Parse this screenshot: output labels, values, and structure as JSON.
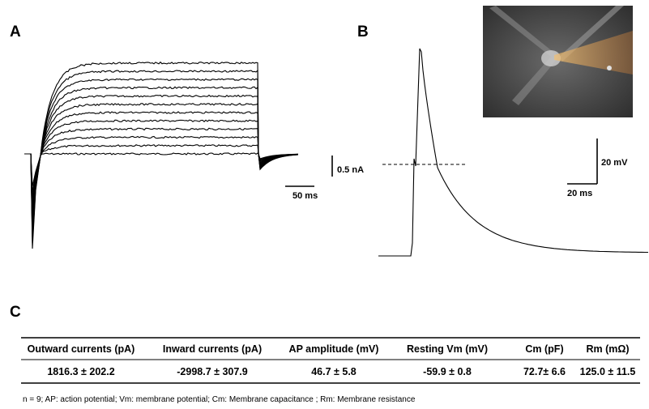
{
  "panels": {
    "a": {
      "label": "A",
      "scale_current": "0.5 nA",
      "scale_time": "50 ms"
    },
    "b": {
      "label": "B",
      "scale_voltage": "20 mV",
      "scale_time": "20 ms"
    },
    "c": {
      "label": "C"
    }
  },
  "table": {
    "header": [
      "Outward currents (pA)",
      "Inward currents (pA)",
      "AP amplitude (mV)",
      "Resting Vm (mV)",
      "Cm (pF)",
      "Rm (mΩ)"
    ],
    "rows": [
      [
        "1816.3 ± 202.2",
        "-2998.7 ± 307.9",
        "46.7 ± 5.8",
        "-59.9 ± 0.8",
        "72.7± 6.6",
        "125.0 ± 11.5"
      ]
    ]
  },
  "footnote": "n = 9; AP: action potential; Vm: membrane potential; Cm: Membrane capacitance ; Rm: Membrane resistance"
}
